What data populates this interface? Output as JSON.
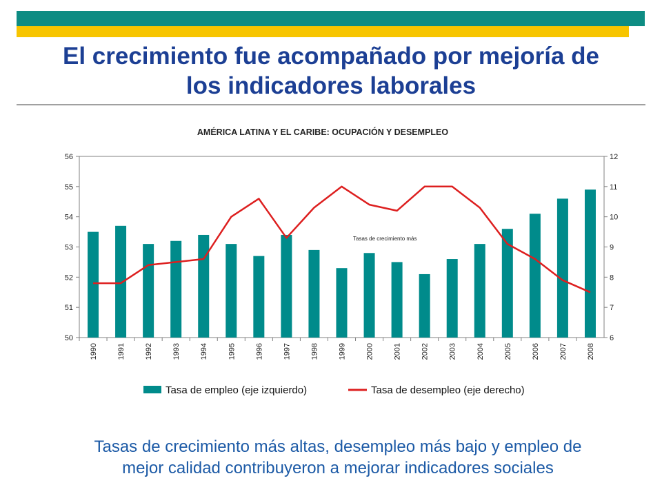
{
  "slide": {
    "title_line1": "El crecimiento fue acompañado por mejoría de",
    "title_line2": "los indicadores laborales",
    "caption_line1": "Tasas de crecimiento más altas, desempleo más bajo y empleo de",
    "caption_line2": "mejor calidad contribuyeron a mejorar indicadores sociales",
    "colors": {
      "header_teal": "#0e8c83",
      "header_yellow": "#f7c500",
      "title": "#1c3f94",
      "caption": "#1c5aa6"
    }
  },
  "chart_data": {
    "type": "bar",
    "title": "AMÉRICA LATINA Y EL CARIBE: OCUPACIÓN Y DESEMPLEO",
    "annotation": "Tasas de crecimiento más",
    "categories": [
      "1990",
      "1991",
      "1992",
      "1993",
      "1994",
      "1995",
      "1996",
      "1997",
      "1998",
      "1999",
      "2000",
      "2001",
      "2002",
      "2003",
      "2004",
      "2005",
      "2006",
      "2007",
      "2008"
    ],
    "y_left": {
      "range": [
        50,
        56
      ],
      "ticks": [
        "50",
        "51",
        "52",
        "53",
        "54",
        "55",
        "56"
      ]
    },
    "y_right": {
      "range": [
        6,
        12
      ],
      "ticks": [
        "6",
        "7",
        "8",
        "9",
        "10",
        "11",
        "12"
      ]
    },
    "series": [
      {
        "name": "Tasa de empleo (eje izquierdo)",
        "kind": "bar",
        "axis": "left",
        "color": "#008b8b",
        "values": [
          53.5,
          53.7,
          53.1,
          53.2,
          53.4,
          53.1,
          52.7,
          53.4,
          52.9,
          52.3,
          52.8,
          52.5,
          52.1,
          52.6,
          53.1,
          53.6,
          54.1,
          54.6,
          54.9
        ]
      },
      {
        "name": "Tasa de desempleo (eje derecho)",
        "kind": "line",
        "axis": "right",
        "color": "#dd1f1f",
        "values": [
          7.8,
          7.8,
          8.4,
          8.5,
          8.6,
          10.0,
          10.6,
          9.3,
          10.3,
          11.0,
          10.4,
          10.2,
          11.0,
          11.0,
          10.3,
          9.1,
          8.6,
          7.9,
          7.5
        ]
      }
    ]
  }
}
